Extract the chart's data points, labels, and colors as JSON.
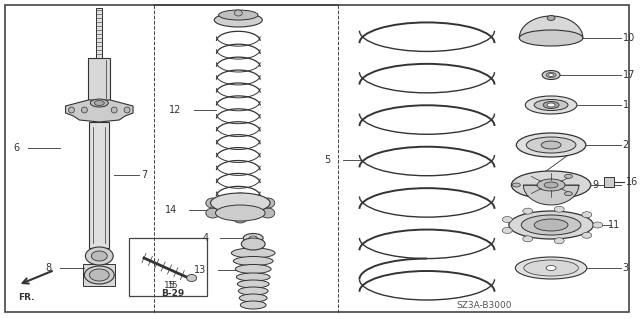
{
  "bg_color": "#ffffff",
  "line_color": "#333333",
  "border_color": "#444444",
  "diagram_code": "SZ3A-B3000",
  "fr_label": "FR.",
  "b29_label": "B-29"
}
